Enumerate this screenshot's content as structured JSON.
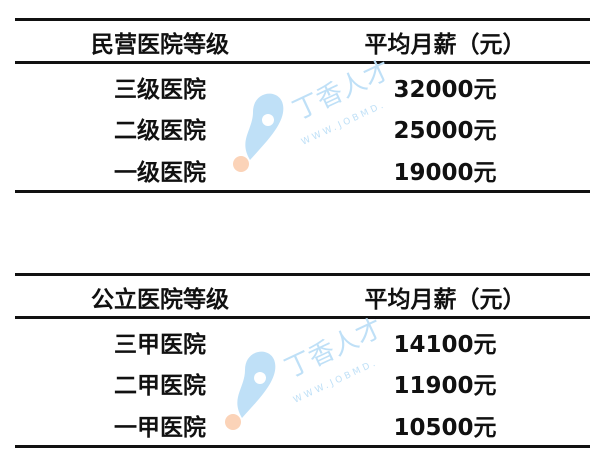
{
  "tables": [
    {
      "header": [
        "民营医院等级",
        "平均月薪（元）"
      ],
      "rows": [
        [
          "三级医院",
          "32000元"
        ],
        [
          "二级医院",
          "25000元"
        ],
        [
          "一级医院",
          "19000元"
        ]
      ]
    },
    {
      "header": [
        "公立医院等级",
        "平均月薪（元）"
      ],
      "rows": [
        [
          "三甲医院",
          "14100元"
        ],
        [
          "二甲医院",
          "11900元"
        ],
        [
          "一甲医院",
          "10500元"
        ]
      ]
    }
  ],
  "watermark": {
    "text": "丁香人才",
    "subtext": "WWW.JOBMD.CN",
    "colors": {
      "pin": "#bfe0f7",
      "dot": "#fbd3b8",
      "text": "#bfe0f7"
    }
  }
}
